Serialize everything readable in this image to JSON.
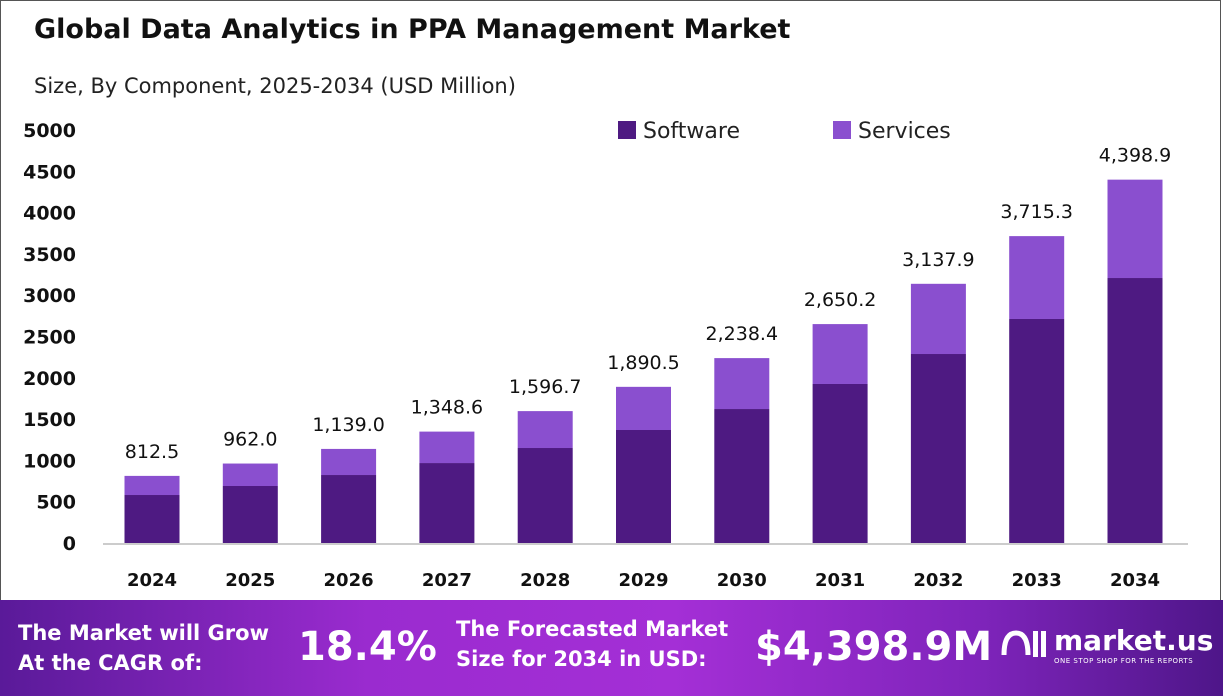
{
  "chart_data": {
    "type": "stacked-bar",
    "title": "Global Data Analytics in PPA Management Market",
    "subtitle": "Size, By Component, 2025-2034 (USD Million)",
    "categories": [
      "2024",
      "2025",
      "2026",
      "2027",
      "2028",
      "2029",
      "2030",
      "2031",
      "2032",
      "2033",
      "2034"
    ],
    "series": [
      {
        "name": "Software",
        "color": "#4e1a82",
        "values": [
          581,
          690,
          823,
          968,
          1150,
          1368,
          1622,
          1925,
          2288,
          2712,
          3208
        ]
      },
      {
        "name": "Services",
        "color": "#8a4fcf",
        "values": [
          231.5,
          272,
          316,
          380.6,
          446.7,
          522.5,
          616.4,
          725.2,
          849.9,
          1003.3,
          1190.9
        ]
      }
    ],
    "totals": [
      "812.5",
      "962.0",
      "1,139.0",
      "1,348.6",
      "1,596.7",
      "1,890.5",
      "2,238.4",
      "2,650.2",
      "3,137.9",
      "3,715.3",
      "4,398.9"
    ],
    "total_values": [
      812.5,
      962.0,
      1139.0,
      1348.6,
      1596.7,
      1890.5,
      2238.4,
      2650.2,
      3137.9,
      3715.3,
      4398.9
    ],
    "ylim": [
      0,
      5000
    ],
    "yticks": [
      "0",
      "500",
      "1000",
      "1500",
      "2000",
      "2500",
      "3000",
      "3500",
      "4000",
      "4500",
      "5000"
    ],
    "legend_position": "top",
    "grid": false
  },
  "footer": {
    "cagr_line1": "The Market will Grow",
    "cagr_line2": "At the CAGR of:",
    "cagr_value": "18.4%",
    "forecast_line1": "The Forecasted Market",
    "forecast_line2": "Size for 2034 in USD:",
    "forecast_value": "$4,398.9M",
    "logo_name": "market.us",
    "logo_tagline": "ONE STOP SHOP FOR THE REPORTS"
  }
}
